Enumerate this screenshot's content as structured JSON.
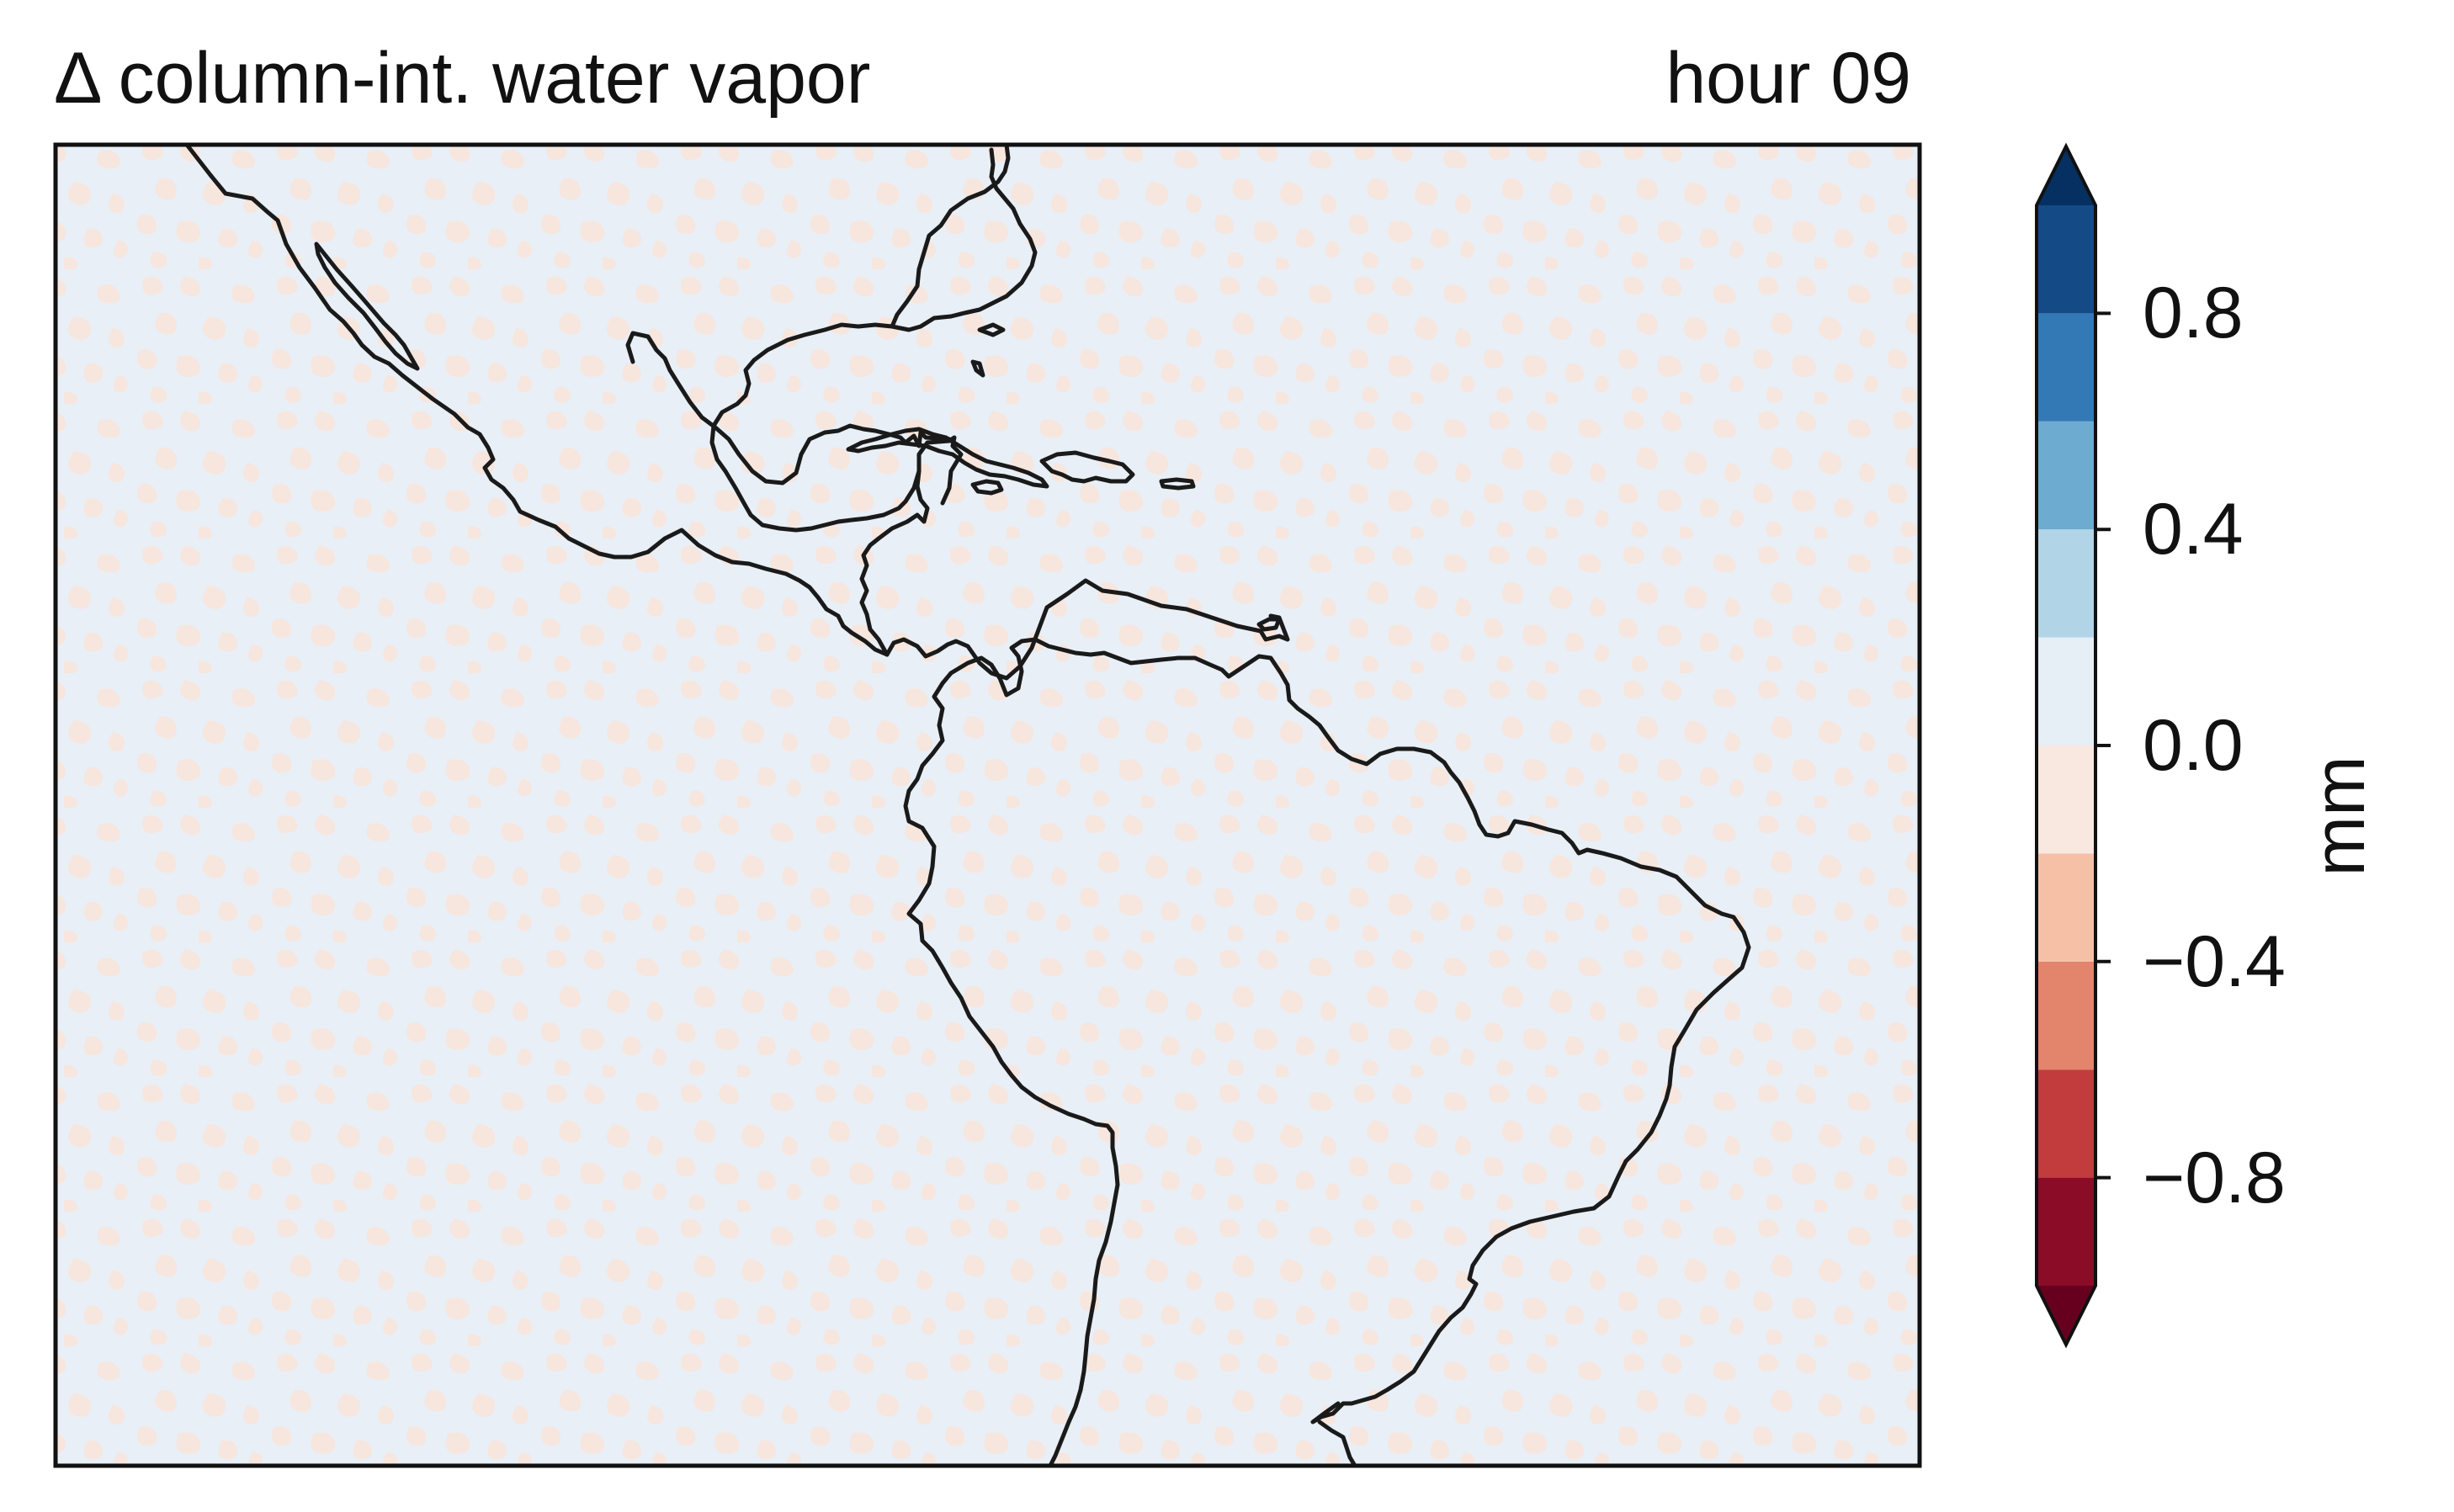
{
  "title_left": "Δ column-int. water vapor",
  "title_right": "hour 09",
  "colorbar": {
    "label": "mm",
    "ticks": [
      {
        "value": 0.8,
        "label": "0.8"
      },
      {
        "value": 0.4,
        "label": "0.4"
      },
      {
        "value": 0.0,
        "label": "0.0"
      },
      {
        "value": -0.4,
        "label": "−0.4"
      },
      {
        "value": -0.8,
        "label": "−0.8"
      }
    ],
    "levels": [
      -1.0,
      -0.8,
      -0.6,
      -0.4,
      -0.2,
      0.0,
      0.2,
      0.4,
      0.6,
      0.8,
      1.0
    ],
    "colors": [
      "#8a0c26",
      "#c23b3d",
      "#e3846c",
      "#f6c0a6",
      "#f9e8df",
      "#e6eef6",
      "#b1d5e7",
      "#6dabd0",
      "#3379b5",
      "#144a86"
    ],
    "extend_low_color": "#67001f",
    "extend_high_color": "#053061",
    "extend": "both"
  },
  "map": {
    "region": "Central America, Caribbean and South America",
    "field_colors": [
      "#f9e8df",
      "#e6eef6"
    ],
    "coastline_color": "#1a1a1a"
  }
}
